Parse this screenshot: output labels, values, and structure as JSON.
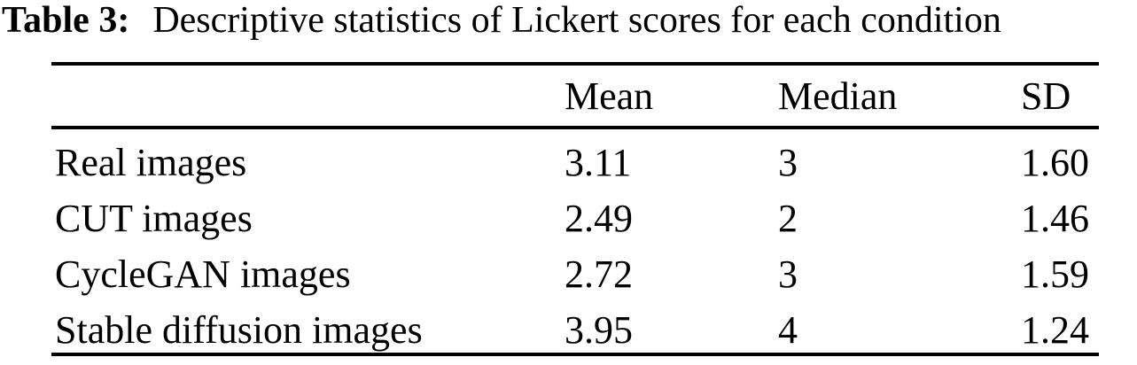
{
  "caption": {
    "label": "Table 3:",
    "text": "Descriptive statistics of Lickert scores for each condition"
  },
  "table": {
    "columns": [
      "",
      "Mean",
      "Median",
      "SD"
    ],
    "rows": [
      {
        "condition": "Real images",
        "mean": "3.11",
        "median": "3",
        "sd": "1.60"
      },
      {
        "condition": "CUT images",
        "mean": "2.49",
        "median": "2",
        "sd": "1.46"
      },
      {
        "condition": "CycleGAN images",
        "mean": "2.72",
        "median": "3",
        "sd": "1.59"
      },
      {
        "condition": "Stable diffusion images",
        "mean": "3.95",
        "median": "4",
        "sd": "1.24"
      }
    ]
  },
  "colors": {
    "text": "#000000",
    "background": "#ffffff",
    "rule": "#000000"
  }
}
